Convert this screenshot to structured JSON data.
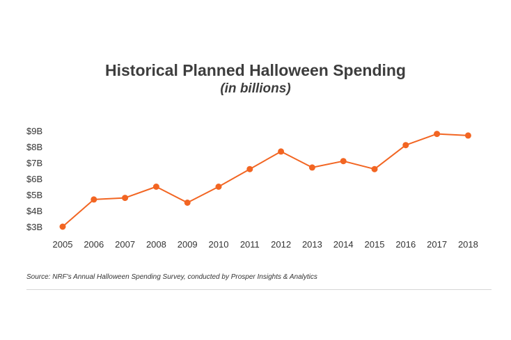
{
  "chart_data": {
    "type": "line",
    "title": "Historical Planned Halloween Spending",
    "subtitle": "(in billions)",
    "xlabel": "",
    "ylabel": "",
    "categories": [
      "2005",
      "2006",
      "2007",
      "2008",
      "2009",
      "2010",
      "2011",
      "2012",
      "2013",
      "2014",
      "2015",
      "2016",
      "2017",
      "2018"
    ],
    "series": [
      {
        "name": "Planned Halloween Spending",
        "values": [
          3.0,
          4.7,
          4.8,
          5.5,
          4.5,
          5.5,
          6.6,
          7.7,
          6.7,
          7.1,
          6.6,
          8.1,
          8.8,
          8.7
        ],
        "color": "#f26522"
      }
    ],
    "yticks": [
      {
        "value": 3,
        "label": "$3B"
      },
      {
        "value": 4,
        "label": "$4B"
      },
      {
        "value": 5,
        "label": "$5B"
      },
      {
        "value": 6,
        "label": "$6B"
      },
      {
        "value": 7,
        "label": "$7B"
      },
      {
        "value": 8,
        "label": "$8B"
      },
      {
        "value": 9,
        "label": "$9B"
      }
    ],
    "ylim": [
      3,
      9
    ],
    "grid": false,
    "legend": "none"
  },
  "source_note": "Source: NRF's Annual Halloween Spending Survey, conducted by Prosper Insights & Analytics",
  "colors": {
    "line": "#f26522",
    "text": "#3d3d3d",
    "divider": "#d6d6d6"
  }
}
